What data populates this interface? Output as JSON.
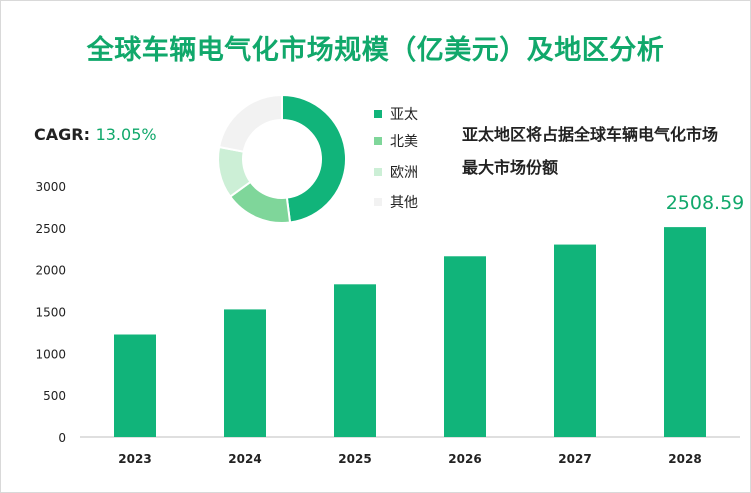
{
  "title": "全球车辆电气化市场规模（亿美元）及地区分析",
  "cagr": {
    "label": "CAGR:",
    "value": "13.05%"
  },
  "note": "亚太地区将占据全球车辆电气化市场最大市场份额",
  "colors": {
    "accent": "#11a86b",
    "bar": "#11b47a"
  },
  "chart_data": [
    {
      "type": "bar",
      "categories": [
        "2023",
        "2024",
        "2025",
        "2026",
        "2027",
        "2028"
      ],
      "values": [
        1225,
        1525,
        1825,
        2160,
        2300,
        2508.59
      ],
      "data_labels": [
        null,
        null,
        null,
        null,
        null,
        "2508.59"
      ],
      "ylim": [
        0,
        3000
      ],
      "yticks": [
        0,
        500,
        1000,
        1500,
        2000,
        2500,
        3000
      ],
      "ytick_labels": [
        "0",
        "500",
        "1000",
        "1500",
        "2000",
        "2500",
        "3000"
      ],
      "grid": false
    },
    {
      "type": "pie",
      "labels": [
        "亚太",
        "北美",
        "欧洲",
        "其他"
      ],
      "values": [
        48,
        17,
        13,
        22
      ],
      "colors": [
        "#11b47a",
        "#7fd69a",
        "#ccefd6",
        "#f2f2f2"
      ],
      "legend": "right"
    }
  ]
}
